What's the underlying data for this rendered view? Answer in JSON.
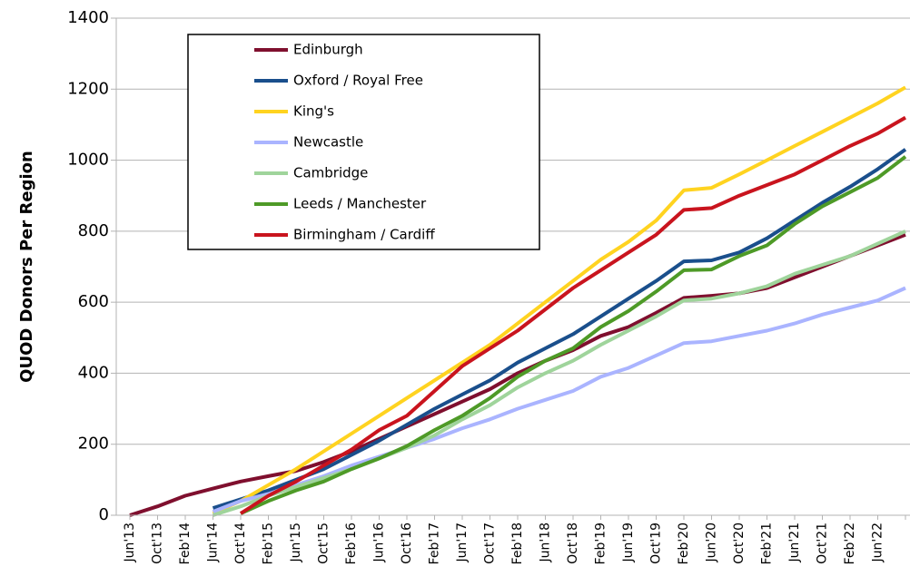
{
  "chart_data": {
    "type": "line",
    "y_label": "QUOD Donors Per Region",
    "categories": [
      "Jun'13",
      "Oct'13",
      "Feb'14",
      "Jun'14",
      "Oct'14",
      "Feb'15",
      "Jun'15",
      "Oct'15",
      "Feb'16",
      "Jun'16",
      "Oct'16",
      "Feb'17",
      "Jun'17",
      "Oct'17",
      "Feb'18",
      "Jun'18",
      "Oct'18",
      "Feb'19",
      "Jun'19",
      "Oct'19",
      "Feb'20",
      "Jun'20",
      "Oct'20",
      "Feb'21",
      "Jun'21",
      "Oct'21",
      "Feb'22",
      "Jun'22",
      null
    ],
    "series": [
      {
        "name": "Edinburgh",
        "color": "#7f0f2e",
        "values": [
          0,
          25,
          55,
          75,
          95,
          110,
          125,
          150,
          180,
          215,
          250,
          285,
          320,
          355,
          400,
          435,
          465,
          505,
          530,
          570,
          612,
          618,
          625,
          640,
          670,
          700,
          730,
          760,
          790
        ]
      },
      {
        "name": "Oxford / Royal Free",
        "color": "#1a4f8c",
        "values": [
          null,
          null,
          null,
          20,
          45,
          70,
          100,
          130,
          170,
          210,
          255,
          300,
          340,
          380,
          430,
          470,
          510,
          560,
          610,
          660,
          715,
          718,
          740,
          780,
          830,
          880,
          925,
          975,
          1030
        ]
      },
      {
        "name": "King's",
        "color": "#ffd320",
        "values": [
          null,
          null,
          null,
          5,
          40,
          85,
          130,
          180,
          230,
          280,
          330,
          380,
          430,
          480,
          540,
          600,
          660,
          720,
          770,
          830,
          915,
          922,
          960,
          1000,
          1040,
          1080,
          1120,
          1160,
          1205
        ]
      },
      {
        "name": "Newcastle",
        "color": "#aab4ff",
        "values": [
          null,
          null,
          null,
          10,
          40,
          60,
          85,
          110,
          140,
          165,
          190,
          215,
          245,
          270,
          300,
          325,
          350,
          390,
          415,
          450,
          485,
          490,
          505,
          520,
          540,
          565,
          585,
          605,
          640
        ]
      },
      {
        "name": "Cambridge",
        "color": "#9fd49b",
        "values": [
          null,
          null,
          null,
          0,
          25,
          55,
          80,
          105,
          130,
          160,
          190,
          225,
          270,
          310,
          360,
          400,
          435,
          480,
          520,
          560,
          605,
          610,
          625,
          645,
          680,
          705,
          730,
          765,
          800
        ]
      },
      {
        "name": "Leeds / Manchester",
        "color": "#4e9a27",
        "values": [
          null,
          null,
          null,
          null,
          5,
          40,
          70,
          95,
          130,
          160,
          195,
          240,
          280,
          330,
          390,
          435,
          470,
          530,
          575,
          630,
          690,
          692,
          730,
          760,
          820,
          870,
          910,
          950,
          1010
        ]
      },
      {
        "name": "Birmingham / Cardiff",
        "color": "#c9141e",
        "values": [
          null,
          null,
          null,
          null,
          5,
          55,
          95,
          140,
          185,
          240,
          280,
          350,
          420,
          470,
          520,
          580,
          640,
          690,
          740,
          790,
          860,
          865,
          900,
          930,
          960,
          1000,
          1040,
          1075,
          1120
        ]
      }
    ],
    "ylim": [
      0,
      1400
    ],
    "yticks": [
      0,
      200,
      400,
      600,
      800,
      1000,
      1200,
      1400
    ],
    "grid": true,
    "legend": "upper left"
  }
}
